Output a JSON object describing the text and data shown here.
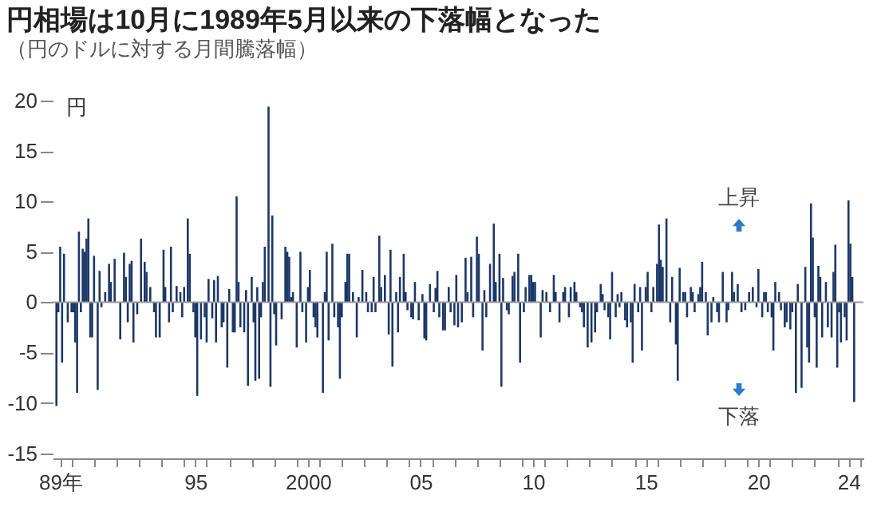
{
  "chart_data": {
    "type": "bar",
    "title": "円相場は10月に1989年5月以来の下落幅となった",
    "subtitle": "（円のドルに対する月間騰落幅）",
    "ylabel": "円",
    "annotations": [
      "上昇",
      "下落"
    ],
    "color": "#1c3767",
    "x": [
      "1989-05",
      "1989-06",
      "1989-07",
      "1989-08",
      "1989-09",
      "1989-11",
      "1990-01",
      "1990-02",
      "1990-03",
      "1990-04",
      "1990-05",
      "1990-06",
      "1990-07",
      "1990-08",
      "1990-09",
      "1990-10",
      "1990-11",
      "1990-12",
      "1991-01",
      "1991-03",
      "1991-04",
      "1991-05",
      "1991-07",
      "1991-09",
      "1991-10",
      "1991-12",
      "1992-03",
      "1992-05",
      "1992-06",
      "1992-07",
      "1992-08",
      "1992-09",
      "1992-10",
      "1992-12",
      "1993-02",
      "1993-04",
      "1993-05",
      "1993-07",
      "1993-09",
      "1993-10",
      "1993-12",
      "1994-02",
      "1994-03",
      "1994-05",
      "1994-06",
      "1994-07",
      "1994-09",
      "1994-11",
      "1994-12",
      "1995-01",
      "1995-03",
      "1995-04",
      "1995-06",
      "1995-07",
      "1995-08",
      "1995-10",
      "1995-12",
      "1996-01",
      "1996-02",
      "1996-04",
      "1996-05",
      "1996-06",
      "1996-07",
      "1996-09",
      "1996-10",
      "1996-12",
      "1997-01",
      "1997-03",
      "1997-04",
      "1997-05",
      "1997-06",
      "1997-07",
      "1997-09",
      "1997-10",
      "1997-11",
      "1998-01",
      "1998-02",
      "1998-03",
      "1998-04",
      "1998-05",
      "1998-06",
      "1998-07",
      "1998-08",
      "1998-10",
      "1998-11",
      "1998-12",
      "1999-01",
      "1999-02",
      "1999-05",
      "1999-07",
      "1999-08",
      "1999-09",
      "1999-10",
      "1999-11",
      "2000-01",
      "2000-03",
      "2000-04",
      "2000-06",
      "2000-07",
      "2000-08",
      "2000-10",
      "2000-11",
      "2000-12",
      "2001-03",
      "2001-04",
      "2001-05",
      "2001-06",
      "2001-08",
      "2001-09",
      "2001-11",
      "2001-12",
      "2002-01",
      "2002-03",
      "2002-04",
      "2002-05",
      "2002-07",
      "2002-09",
      "2002-10",
      "2002-12",
      "2003-02",
      "2003-03",
      "2003-05",
      "2003-06",
      "2003-07",
      "2003-09",
      "2003-10",
      "2003-12",
      "2004-02",
      "2004-03",
      "2004-04",
      "2004-06",
      "2004-07",
      "2004-08",
      "2004-10",
      "2004-11",
      "2004-12",
      "2005-02",
      "2005-03",
      "2005-04",
      "2005-06",
      "2005-08",
      "2005-09",
      "2005-10",
      "2005-12",
      "2006-02",
      "2006-03",
      "2006-04",
      "2006-05",
      "2006-07",
      "2006-08",
      "2006-10",
      "2006-11",
      "2007-01",
      "2007-02",
      "2007-03",
      "2007-05",
      "2007-07",
      "2007-08",
      "2007-10",
      "2007-11",
      "2008-01",
      "2008-02",
      "2008-04",
      "2008-05",
      "2008-06",
      "2008-08",
      "2008-10",
      "2008-11",
      "2009-01",
      "2009-02",
      "2009-03",
      "2009-05",
      "2009-06",
      "2009-08",
      "2009-09",
      "2009-11",
      "2009-12",
      "2010-02",
      "2010-03",
      "2010-05",
      "2010-06",
      "2010-07",
      "2010-08",
      "2010-11",
      "2010-12",
      "2011-02",
      "2011-04",
      "2011-06",
      "2011-07",
      "2011-09",
      "2011-11",
      "2011-12",
      "2012-02",
      "2012-03",
      "2012-05",
      "2012-06",
      "2012-08",
      "2012-09",
      "2012-10",
      "2012-12",
      "2013-02",
      "2013-04",
      "2013-05",
      "2013-07",
      "2013-08",
      "2013-09",
      "2013-11",
      "2013-12",
      "2014-01",
      "2014-03",
      "2014-04",
      "2014-05",
      "2014-06",
      "2014-08",
      "2014-09",
      "2014-11",
      "2014-12",
      "2015-01",
      "2015-03",
      "2015-04",
      "2015-05",
      "2015-07",
      "2015-08",
      "2015-10",
      "2015-11",
      "2016-01",
      "2016-02",
      "2016-03",
      "2016-04",
      "2016-06",
      "2016-08",
      "2016-09",
      "2016-11",
      "2016-12",
      "2017-01",
      "2017-03",
      "2017-04",
      "2017-05",
      "2017-07",
      "2017-08",
      "2017-09",
      "2017-11",
      "2017-12",
      "2018-01",
      "2018-03",
      "2018-04",
      "2018-06",
      "2018-07",
      "2018-09",
      "2018-10",
      "2018-12",
      "2019-02",
      "2019-03",
      "2019-05",
      "2019-06",
      "2019-08",
      "2019-10",
      "2019-12",
      "2020-02",
      "2020-04",
      "2020-06",
      "2020-07",
      "2020-09",
      "2020-10",
      "2020-11",
      "2020-12",
      "2021-02",
      "2021-03",
      "2021-04",
      "2021-06",
      "2021-07",
      "2021-09",
      "2021-10",
      "2021-12",
      "2022-01",
      "2022-03",
      "2022-04",
      "2022-06",
      "2022-08",
      "2022-09",
      "2022-10",
      "2022-11",
      "2022-12",
      "2023-01",
      "2023-02",
      "2023-03",
      "2023-04",
      "2023-05",
      "2023-07",
      "2023-08",
      "2023-10",
      "2023-11",
      "2023-12",
      "2024-01",
      "2024-02",
      "2024-03",
      "2024-05",
      "2024-06",
      "2024-07",
      "2024-08",
      "2024-09",
      "2024-10"
    ],
    "values": [
      -10.3,
      -1,
      5.5,
      -6,
      4.8,
      -2,
      -1,
      -1,
      -4,
      -9,
      7,
      -1,
      5.3,
      5,
      6.3,
      8.3,
      -3.5,
      -3.5,
      4.6,
      -8.7,
      3.1,
      -0.5,
      1,
      3.8,
      2,
      4.3,
      -3.7,
      4.9,
      2.5,
      -2,
      3.8,
      4.1,
      -4,
      -1.2,
      6.3,
      4,
      3,
      1.5,
      -1,
      -3.5,
      -3.5,
      5.2,
      1.5,
      -2,
      5.5,
      -1,
      1.6,
      1,
      -1.5,
      1.5,
      8.3,
      4.8,
      -1,
      -3.5,
      -9.3,
      -3.7,
      -1.5,
      -4,
      2.3,
      -1.6,
      2.2,
      -4,
      2.6,
      -2.5,
      -2,
      -6.5,
      1.3,
      -3,
      -3,
      10.5,
      2,
      -2.5,
      -3,
      1.2,
      -8.3,
      2.5,
      -2,
      -7.8,
      1.5,
      -7.6,
      -1.5,
      2,
      5.5,
      19.4,
      -8.4,
      8.6,
      -1.2,
      -4.3,
      -1.7,
      5.5,
      5,
      4.5,
      0.5,
      1,
      -4.5,
      5,
      -1,
      -4,
      1.5,
      3.2,
      -1.5,
      -2.5,
      -3.5,
      -9,
      1,
      5,
      -3.8,
      5.8,
      -1.5,
      -2.5,
      -7.6,
      -1.5,
      2,
      4.8,
      4.8,
      1,
      -3.5,
      0.5,
      3.2,
      1,
      -1,
      -1,
      2.5,
      -1,
      6.6,
      1.5,
      2.7,
      -3.2,
      5.2,
      -6.4,
      1,
      -3,
      2.5,
      4.8,
      1,
      -0.8,
      -1.5,
      -1.7,
      2,
      -1.8,
      0.8,
      -3.6,
      -3.8,
      1.8,
      -1,
      1.4,
      3.1,
      -1.5,
      -2.8,
      -2.8,
      1.5,
      -1,
      -2.3,
      2.7,
      -2.5,
      -2,
      4.4,
      1,
      4.5,
      -1.5,
      6.5,
      4.8,
      -4.8,
      1.2,
      -1.5,
      3.8,
      7.8,
      2,
      4.8,
      -8.4,
      2.4,
      -0.8,
      -1.2,
      2.6,
      3,
      4.8,
      -6,
      -1,
      1.5,
      2.7,
      2.7,
      2,
      2,
      -3.5,
      1.2,
      1,
      -1,
      2.7,
      1,
      -2,
      1,
      1.5,
      -1.5,
      1.5,
      2,
      1,
      -0.5,
      -1,
      -2.5,
      -4.5,
      -4,
      -3,
      -1,
      1.8,
      0.8,
      -0.8,
      -1.5,
      -3.7,
      3,
      -1.5,
      0.8,
      -0.5,
      1,
      -1.8,
      -2.5,
      -2,
      -6,
      1.8,
      -1,
      1.5,
      -4.8,
      1.5,
      3,
      -1,
      1.5,
      3.8,
      7.7,
      4.2,
      3.5,
      8.3,
      -2,
      2.5,
      -4.2,
      -7.8,
      3.4,
      1,
      1,
      -1.5,
      1.5,
      1,
      -1,
      0.8,
      1.5,
      4,
      1,
      -3.3,
      -2,
      0.5,
      -1,
      -2,
      3,
      -2,
      -0.8,
      3,
      1,
      1.8,
      -1,
      -0.8,
      1,
      1.5,
      -0.5,
      3.3,
      -1.5,
      1,
      1,
      -1,
      -1.5,
      -4.8,
      2,
      1,
      -0.8,
      -2.5,
      -2,
      -2.7,
      -1,
      -9,
      1.8,
      -8.5,
      3.5,
      -4.5,
      -6,
      9.8,
      6.4,
      -1.5,
      -6.5,
      3.6,
      2.5,
      -3.5,
      2,
      -2.5,
      -3.5,
      3,
      5.7,
      -6.5,
      -1,
      -4,
      -1.5,
      -3.8,
      10.1,
      5.8,
      2.5,
      -9.9
    ],
    "xlim": [
      "1989-03",
      "2025-03"
    ],
    "xticks": [
      {
        "value": "1989-07",
        "label": "89年"
      },
      {
        "value": "1995-07",
        "label": "95"
      },
      {
        "value": "2000-07",
        "label": "2000"
      },
      {
        "value": "2005-07",
        "label": "05"
      },
      {
        "value": "2010-07",
        "label": "10"
      },
      {
        "value": "2015-07",
        "label": "15"
      },
      {
        "value": "2020-07",
        "label": "20"
      },
      {
        "value": "2024-07",
        "label": "24"
      },
      {
        "value": "1990-01",
        "label": null
      },
      {
        "value": "1991-01",
        "label": null
      },
      {
        "value": "1992-01",
        "label": null
      },
      {
        "value": "1993-01",
        "label": null
      },
      {
        "value": "1994-01",
        "label": null
      },
      {
        "value": "1995-01",
        "label": null
      },
      {
        "value": "1996-01",
        "label": null
      },
      {
        "value": "1997-01",
        "label": null
      },
      {
        "value": "1998-01",
        "label": null
      },
      {
        "value": "1999-01",
        "label": null
      },
      {
        "value": "2000-01",
        "label": null
      },
      {
        "value": "2001-01",
        "label": null
      },
      {
        "value": "2002-01",
        "label": null
      },
      {
        "value": "2003-01",
        "label": null
      },
      {
        "value": "2004-01",
        "label": null
      },
      {
        "value": "2005-01",
        "label": null
      },
      {
        "value": "2006-01",
        "label": null
      },
      {
        "value": "2007-01",
        "label": null
      },
      {
        "value": "2008-01",
        "label": null
      },
      {
        "value": "2009-01",
        "label": null
      },
      {
        "value": "2010-01",
        "label": null
      },
      {
        "value": "2011-01",
        "label": null
      },
      {
        "value": "2012-01",
        "label": null
      },
      {
        "value": "2013-01",
        "label": null
      },
      {
        "value": "2014-01",
        "label": null
      },
      {
        "value": "2015-01",
        "label": null
      },
      {
        "value": "2016-01",
        "label": null
      },
      {
        "value": "2017-01",
        "label": null
      },
      {
        "value": "2018-01",
        "label": null
      },
      {
        "value": "2019-01",
        "label": null
      },
      {
        "value": "2020-01",
        "label": null
      },
      {
        "value": "2021-01",
        "label": null
      },
      {
        "value": "2022-01",
        "label": null
      },
      {
        "value": "2023-01",
        "label": null
      },
      {
        "value": "2024-01",
        "label": null
      },
      {
        "value": "2025-01",
        "label": null
      }
    ],
    "ylim": [
      -15.5,
      20
    ],
    "yticks": [
      -15,
      -10,
      -5,
      0,
      5,
      10,
      15,
      20
    ],
    "ref_lines": [
      {
        "axis": "y",
        "value": 0,
        "color": "#999999"
      }
    ],
    "grid": false
  }
}
